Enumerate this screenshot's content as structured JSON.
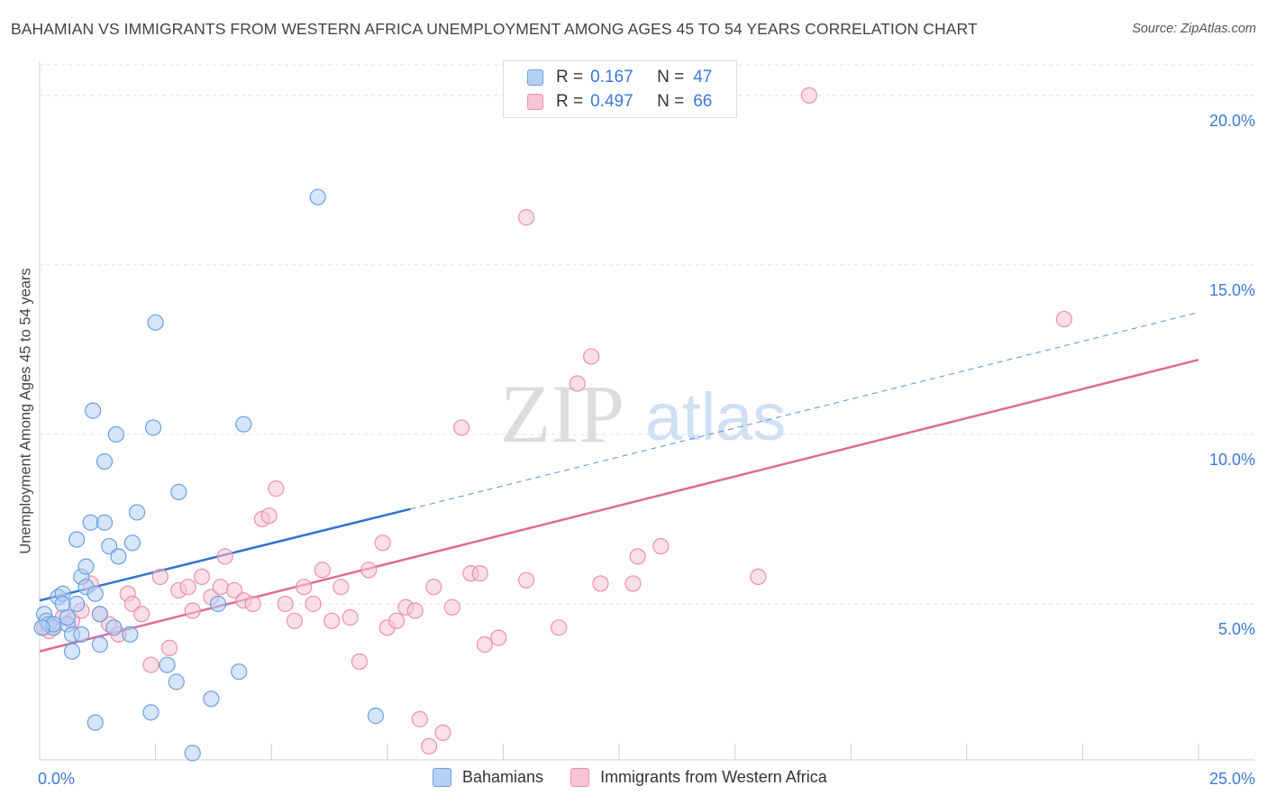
{
  "title": "BAHAMIAN VS IMMIGRANTS FROM WESTERN AFRICA UNEMPLOYMENT AMONG AGES 45 TO 54 YEARS CORRELATION CHART",
  "source": "Source: ZipAtlas.com",
  "watermark": {
    "zip": "ZIP",
    "atlas": "atlas"
  },
  "legend": {
    "rows": [
      {
        "r_label": "R =",
        "r_value": "0.167",
        "n_label": "N =",
        "n_value": "47"
      },
      {
        "r_label": "R =",
        "r_value": "0.497",
        "n_label": "N =",
        "n_value": "66"
      }
    ]
  },
  "bottom_legend": {
    "series1": "Bahamians",
    "series2": "Immigrants from Western Africa"
  },
  "chart_data": {
    "type": "scatter",
    "title": "BAHAMIAN VS IMMIGRANTS FROM WESTERN AFRICA UNEMPLOYMENT AMONG AGES 45 TO 54 YEARS CORRELATION CHART",
    "xlabel": "",
    "ylabel": "Unemployment Among Ages 45 to 54 years",
    "xlim": [
      0,
      25
    ],
    "ylim": [
      0.4,
      20.9
    ],
    "x_tick_labels": [
      {
        "value": 0,
        "label": "0.0%"
      },
      {
        "value": 25,
        "label": "25.0%"
      }
    ],
    "x_minor_ticks": [
      2.5,
      5,
      7.5,
      10,
      12.5,
      15,
      17.5,
      20,
      22.5,
      25
    ],
    "y_ticks": [
      {
        "value": 5,
        "label": "5.0%"
      },
      {
        "value": 10,
        "label": "10.0%"
      },
      {
        "value": 15,
        "label": "15.0%"
      },
      {
        "value": 20,
        "label": "20.0%"
      }
    ],
    "grid": true,
    "legend_position": "top-center",
    "series": [
      {
        "name": "Bahamians",
        "color": "#6b9fe0",
        "fill": "#b5d0f2",
        "trendline": {
          "x0": 0,
          "y0": 5.1,
          "x1": 8,
          "y1": 7.8,
          "dashed_to_x": 25,
          "dashed_to_y": 13.6,
          "color": "#2f74d0"
        },
        "points": [
          [
            0.1,
            4.7
          ],
          [
            0.15,
            4.5
          ],
          [
            0.2,
            4.4
          ],
          [
            0.3,
            4.3
          ],
          [
            0.3,
            4.4
          ],
          [
            0.4,
            5.2
          ],
          [
            0.5,
            5.3
          ],
          [
            0.5,
            5.0
          ],
          [
            0.6,
            4.4
          ],
          [
            0.6,
            4.6
          ],
          [
            0.7,
            3.6
          ],
          [
            0.7,
            4.1
          ],
          [
            0.8,
            6.9
          ],
          [
            0.8,
            5.0
          ],
          [
            0.9,
            5.8
          ],
          [
            0.9,
            4.1
          ],
          [
            1.0,
            6.1
          ],
          [
            1.0,
            5.5
          ],
          [
            1.1,
            7.4
          ],
          [
            1.15,
            10.7
          ],
          [
            1.2,
            5.3
          ],
          [
            1.3,
            4.7
          ],
          [
            1.3,
            3.8
          ],
          [
            1.4,
            9.2
          ],
          [
            1.4,
            7.4
          ],
          [
            1.5,
            6.7
          ],
          [
            1.6,
            4.3
          ],
          [
            1.65,
            10.0
          ],
          [
            1.7,
            6.4
          ],
          [
            1.2,
            1.5
          ],
          [
            1.95,
            4.1
          ],
          [
            2.0,
            6.8
          ],
          [
            2.1,
            7.7
          ],
          [
            2.4,
            1.8
          ],
          [
            2.45,
            10.2
          ],
          [
            2.5,
            13.3
          ],
          [
            2.75,
            3.2
          ],
          [
            2.95,
            2.7
          ],
          [
            3.0,
            8.3
          ],
          [
            3.3,
            0.6
          ],
          [
            3.7,
            2.2
          ],
          [
            3.85,
            5.0
          ],
          [
            4.3,
            3.0
          ],
          [
            4.4,
            10.3
          ],
          [
            6.0,
            17.0
          ],
          [
            7.25,
            1.7
          ],
          [
            0.05,
            4.3
          ]
        ]
      },
      {
        "name": "Immigrants from Western Africa",
        "color": "#ec8fae",
        "fill": "#f6c4d4",
        "trendline": {
          "x0": 0,
          "y0": 3.6,
          "x1": 25,
          "y1": 12.2,
          "color": "#e06a93"
        },
        "points": [
          [
            0.1,
            4.3
          ],
          [
            0.2,
            4.2
          ],
          [
            0.3,
            4.3
          ],
          [
            0.5,
            4.6
          ],
          [
            0.7,
            4.5
          ],
          [
            0.9,
            4.8
          ],
          [
            1.1,
            5.6
          ],
          [
            1.3,
            4.7
          ],
          [
            1.5,
            4.4
          ],
          [
            1.7,
            4.1
          ],
          [
            1.9,
            5.3
          ],
          [
            2.0,
            5.0
          ],
          [
            2.2,
            4.7
          ],
          [
            2.4,
            3.2
          ],
          [
            2.6,
            5.8
          ],
          [
            2.8,
            3.7
          ],
          [
            3.0,
            5.4
          ],
          [
            3.2,
            5.5
          ],
          [
            3.3,
            4.8
          ],
          [
            3.5,
            5.8
          ],
          [
            3.7,
            5.2
          ],
          [
            3.9,
            5.5
          ],
          [
            4.0,
            6.4
          ],
          [
            4.2,
            5.4
          ],
          [
            4.4,
            5.1
          ],
          [
            4.6,
            5.0
          ],
          [
            4.8,
            7.5
          ],
          [
            4.95,
            7.6
          ],
          [
            5.1,
            8.4
          ],
          [
            5.3,
            5.0
          ],
          [
            5.5,
            4.5
          ],
          [
            5.7,
            5.5
          ],
          [
            5.9,
            5.0
          ],
          [
            6.1,
            6.0
          ],
          [
            6.3,
            4.5
          ],
          [
            6.5,
            5.5
          ],
          [
            6.7,
            4.6
          ],
          [
            6.9,
            3.3
          ],
          [
            7.1,
            6.0
          ],
          [
            7.4,
            6.8
          ],
          [
            7.5,
            4.3
          ],
          [
            7.7,
            4.5
          ],
          [
            7.9,
            4.9
          ],
          [
            8.1,
            4.8
          ],
          [
            8.2,
            1.6
          ],
          [
            8.4,
            0.8
          ],
          [
            8.5,
            5.5
          ],
          [
            8.7,
            1.2
          ],
          [
            8.9,
            4.9
          ],
          [
            9.1,
            10.2
          ],
          [
            9.3,
            5.9
          ],
          [
            9.5,
            5.9
          ],
          [
            9.6,
            3.8
          ],
          [
            9.9,
            4.0
          ],
          [
            10.5,
            16.4
          ],
          [
            10.5,
            5.7
          ],
          [
            11.2,
            4.3
          ],
          [
            11.6,
            11.5
          ],
          [
            11.9,
            12.3
          ],
          [
            12.1,
            5.6
          ],
          [
            12.8,
            5.6
          ],
          [
            12.9,
            6.4
          ],
          [
            13.4,
            6.7
          ],
          [
            15.5,
            5.8
          ],
          [
            16.6,
            20.0
          ],
          [
            22.1,
            13.4
          ]
        ]
      }
    ]
  }
}
